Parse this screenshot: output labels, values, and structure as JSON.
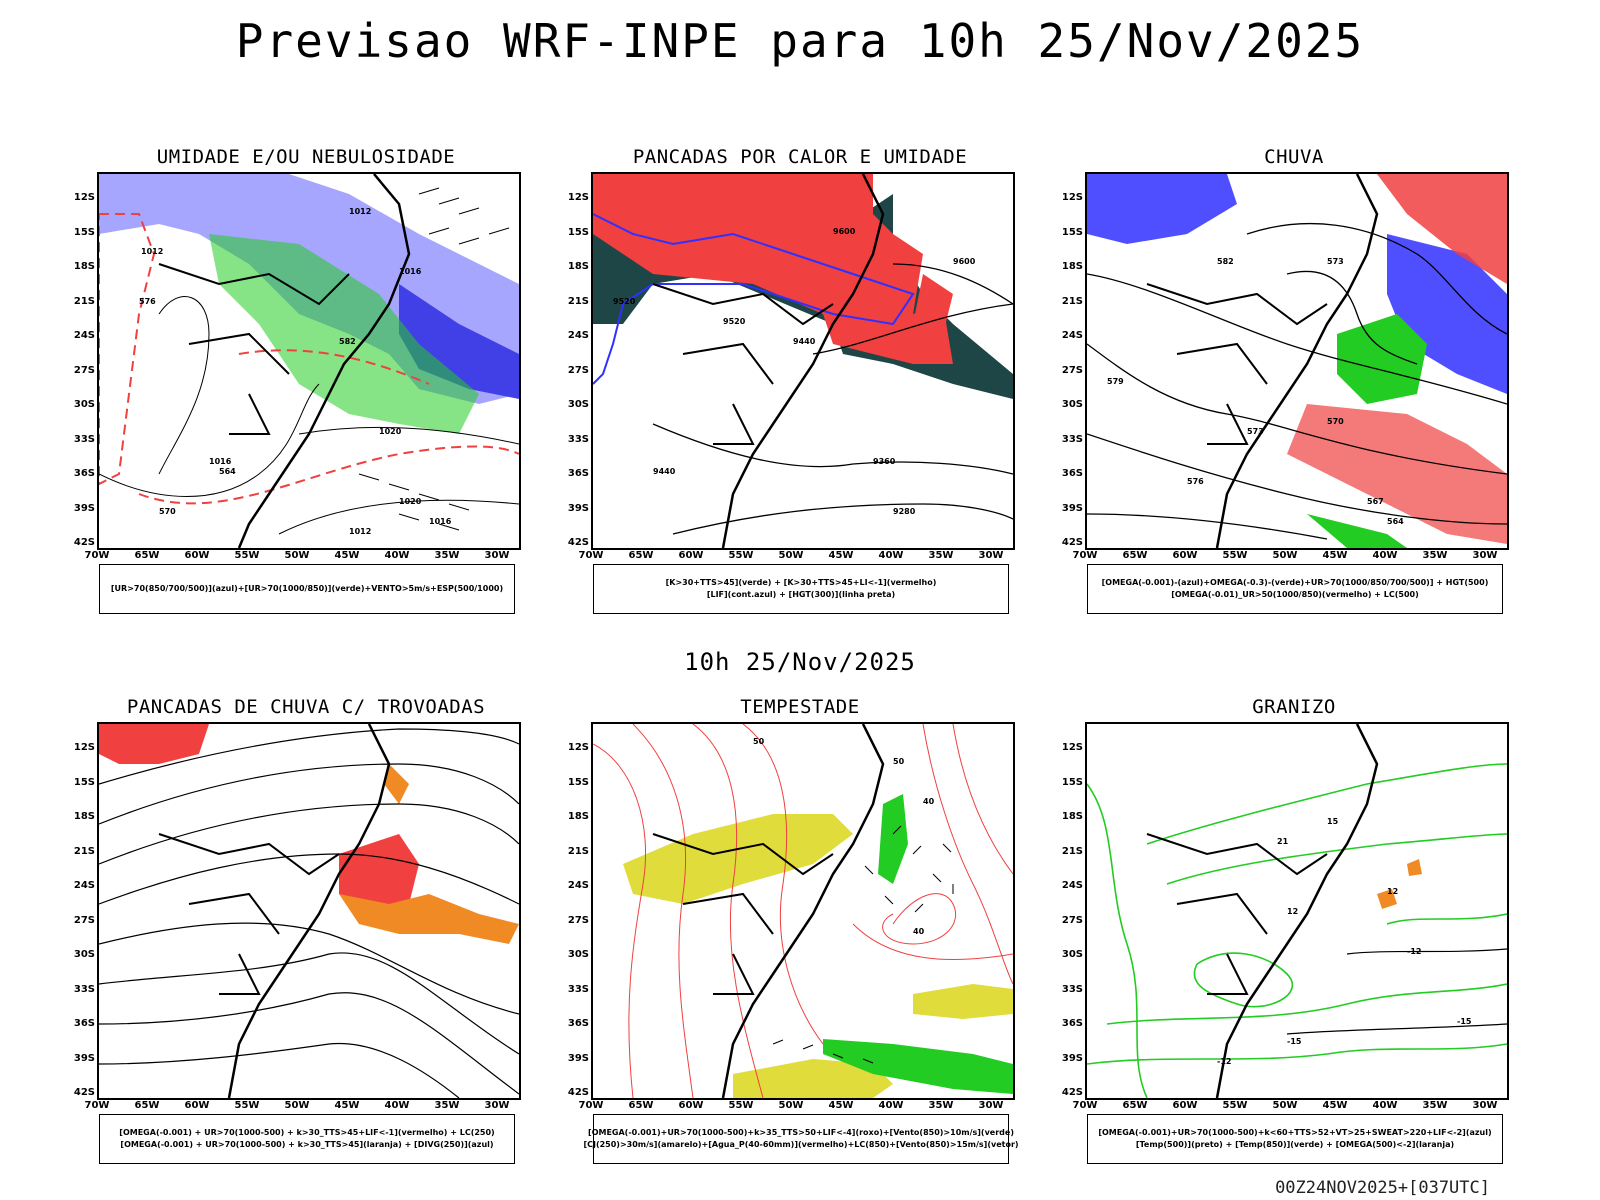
{
  "header": {
    "title": "Previsao WRF-INPE  para 10h 25/Nov/2025"
  },
  "middle": {
    "date": "10h 25/Nov/2025"
  },
  "footer": {
    "run_code": "00Z24NOV2025+[037UTC]"
  },
  "axes": {
    "lat_labels": [
      "12S",
      "15S",
      "18S",
      "21S",
      "24S",
      "27S",
      "30S",
      "33S",
      "36S",
      "39S",
      "42S"
    ],
    "lon_labels": [
      "70W",
      "65W",
      "60W",
      "55W",
      "50W",
      "45W",
      "40W",
      "35W",
      "30W"
    ]
  },
  "colors": {
    "blue": "#3030ff",
    "lavender": "#9b9bff",
    "green": "#22cc22",
    "red": "#f04040",
    "darkteal": "#1e4646",
    "yellow": "#e0dc3c",
    "orange": "#f08a24"
  },
  "panels": [
    {
      "id": "umidade",
      "title": "UMIDADE E/OU NEBULOSIDADE",
      "legend": [
        "[UR>70(850/700/500)](azul)+[UR>70(1000/850)](verde)+VENTO>5m/s+ESP(500/1000)"
      ],
      "contour_labels": [
        "1012",
        "1012",
        "1016",
        "1016",
        "1020",
        "1020",
        "1016",
        "1012",
        "564",
        "570",
        "576",
        "582"
      ]
    },
    {
      "id": "pancadas",
      "title": "PANCADAS POR CALOR E UMIDADE",
      "legend": [
        "[K>30+TTS>45](verde) + [K>30+TTS>45+LI<-1](vermelho)",
        "[LIF](cont.azul) + [HGT(300)](linha preta)"
      ],
      "contour_labels": [
        "9600",
        "9520",
        "9520",
        "9440",
        "9440",
        "9360",
        "9280",
        "9600"
      ]
    },
    {
      "id": "chuva",
      "title": "CHUVA",
      "legend": [
        "[OMEGA(-0.001)-(azul)+OMEGA(-0.3)-(verde)+UR>70(1000/850/700/500)] + HGT(500)",
        "[OMEGA(-0.01)_UR>50(1000/850)(vermelho) + LC(500)"
      ],
      "contour_labels": [
        "579",
        "576",
        "573",
        "570",
        "567",
        "564",
        "582",
        "573"
      ]
    },
    {
      "id": "trovoadas",
      "title": "PANCADAS DE CHUVA C/ TROVOADAS",
      "legend": [
        "[OMEGA(-0.001) + UR>70(1000-500) + k>30_TTS>45+LIF<-1](vermelho) + LC(250)",
        "[OMEGA(-0.001) + UR>70(1000-500) + k>30_TTS>45](laranja) + [DIVG(250)](azul)"
      ],
      "contour_labels": []
    },
    {
      "id": "tempestade",
      "title": "TEMPESTADE",
      "legend": [
        "[OMEGA(-0.001)+UR>70(1000-500)+k>35_TTS>50+LIF<-4](roxo)+[Vento(850)>10m/s](verde)",
        "[CJ(250)>30m/s](amarelo)+[Agua_P(40-60mm)](vermelho)+LC(850)+[Vento(850)>15m/s](vetor)"
      ],
      "contour_labels": [
        "50",
        "50",
        "40",
        "40"
      ]
    },
    {
      "id": "granizo",
      "title": "GRANIZO",
      "legend": [
        "[OMEGA(-0.001)+UR>70(1000-500)+k<60+TTS>52+VT>25+SWEAT>220+LIF<-2](azul)",
        "[Temp(500)](preto) + [Temp(850)](verde) + [OMEGA(500)<-2](laranja)"
      ],
      "contour_labels": [
        "-12",
        "-12",
        "-15",
        "-15",
        "12",
        "12",
        "15",
        "21"
      ]
    }
  ]
}
